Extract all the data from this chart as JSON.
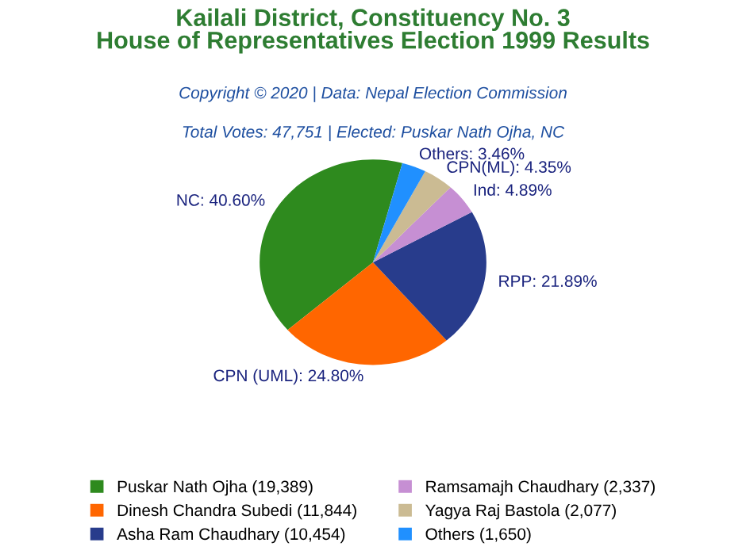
{
  "chart_data": {
    "type": "pie",
    "title": "Kailali District, Constituency No. 3\nHouse of Representatives Election 1999 Results",
    "subtitle": "Total Votes: 47,751 | Elected: Puskar Nath Ojha, NC",
    "annotations": [
      "Copyright © 2020 | Data: Nepal Election Commission"
    ],
    "categories": [
      "Puskar Nath Ojha (19,389)",
      "Dinesh Chandra Subedi (11,844)",
      "Asha Ram Chaudhary (10,454)",
      "Ramsamajh Chaudhary (2,337)",
      "Yagya Raj Bastola (2,077)",
      "Others (1,650)"
    ],
    "values": [
      40.6,
      24.8,
      21.89,
      4.89,
      4.35,
      3.46
    ],
    "value_labels": [
      "NC: 40.60%",
      "CPN (UML): 24.80%",
      "RPP: 21.89%",
      "Ind: 4.89%",
      "CPN(ML): 4.35%",
      "Others: 3.46%"
    ],
    "colors": [
      "#2e8a1e",
      "#ff6600",
      "#283c8c",
      "#c68fd3",
      "#cbbb93",
      "#2090ff"
    ],
    "legend": "bottom"
  }
}
